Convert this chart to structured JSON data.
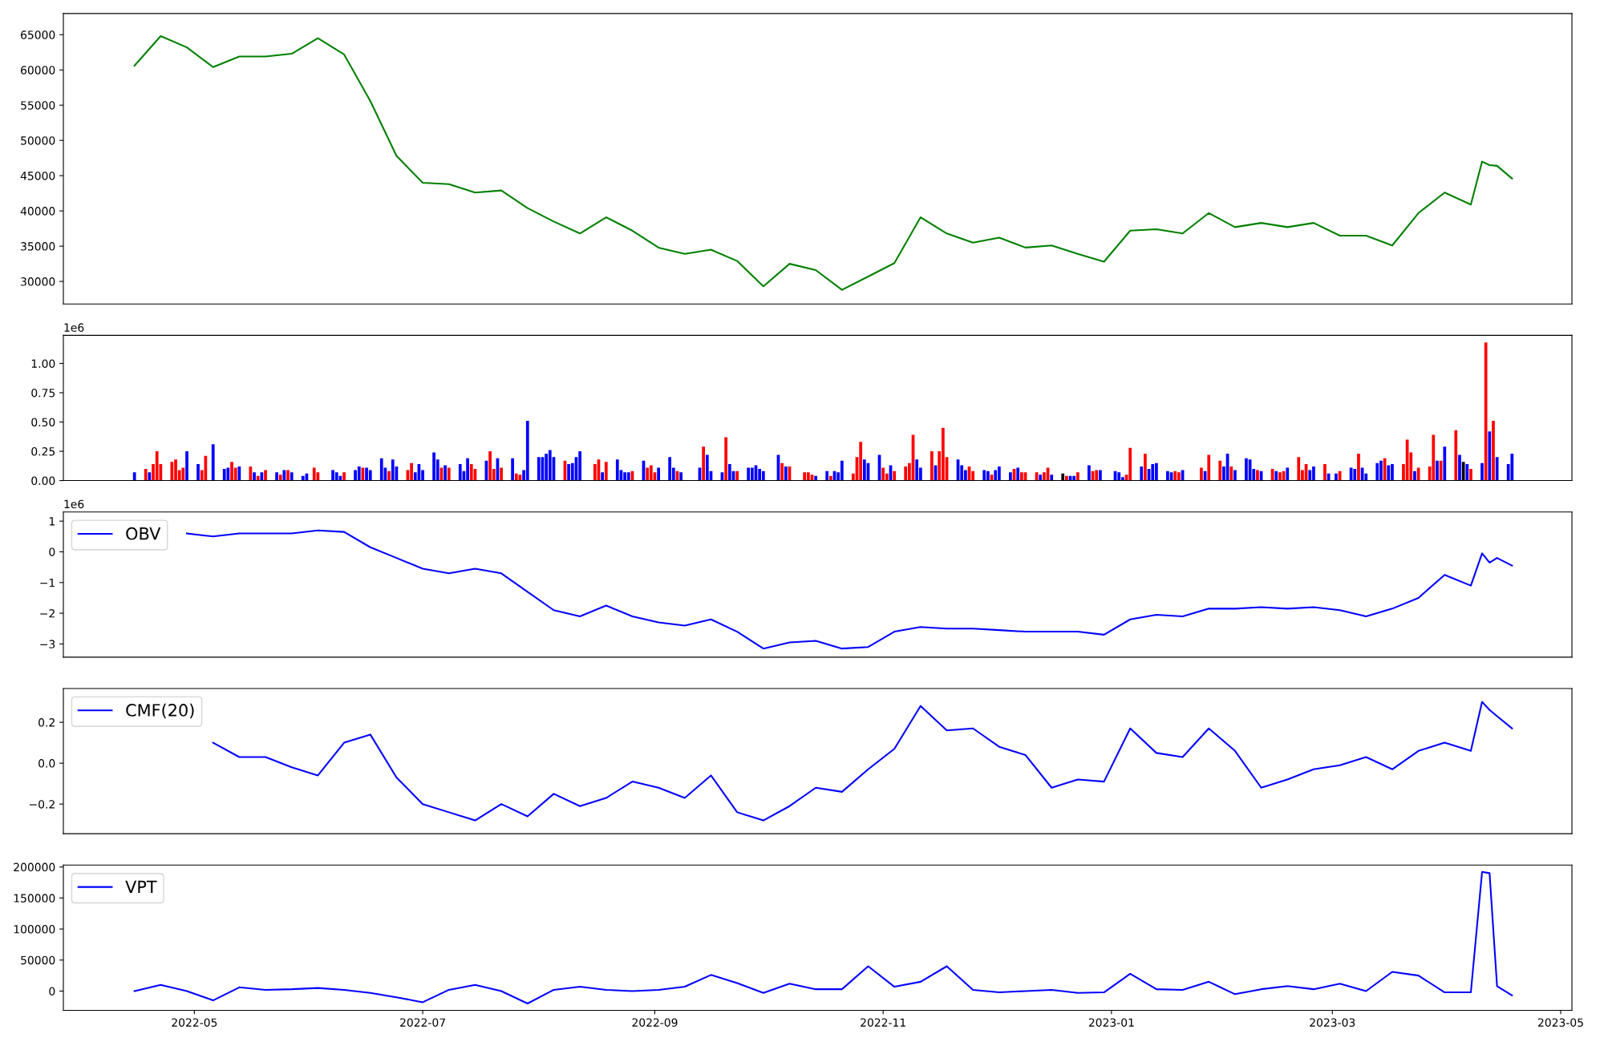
{
  "chart_data": [
    {
      "type": "line",
      "xlim": [
        "2022-03-27",
        "2023-05-04"
      ],
      "ylim": [
        26800,
        68000
      ],
      "yticks": [
        30000,
        35000,
        40000,
        45000,
        50000,
        55000,
        60000,
        65000
      ],
      "tick_labels": "y",
      "series": [
        {
          "color": "#008000",
          "x": [
            "2022-04-15",
            "2022-04-22",
            "2022-04-29",
            "2022-05-06",
            "2022-05-13",
            "2022-05-20",
            "2022-05-27",
            "2022-06-03",
            "2022-06-10",
            "2022-06-17",
            "2022-06-24",
            "2022-07-01",
            "2022-07-08",
            "2022-07-15",
            "2022-07-22",
            "2022-07-29",
            "2022-08-05",
            "2022-08-12",
            "2022-08-19",
            "2022-08-26",
            "2022-09-02",
            "2022-09-09",
            "2022-09-16",
            "2022-09-23",
            "2022-09-30",
            "2022-10-07",
            "2022-10-14",
            "2022-10-21",
            "2022-10-28",
            "2022-11-04",
            "2022-11-11",
            "2022-11-18",
            "2022-11-25",
            "2022-12-02",
            "2022-12-09",
            "2022-12-16",
            "2022-12-23",
            "2022-12-30",
            "2023-01-06",
            "2023-01-13",
            "2023-01-20",
            "2023-01-27",
            "2023-02-03",
            "2023-02-10",
            "2023-02-17",
            "2023-02-24",
            "2023-03-03",
            "2023-03-10",
            "2023-03-17",
            "2023-03-24",
            "2023-03-31",
            "2023-04-07",
            "2023-04-10",
            "2023-04-12",
            "2023-04-14",
            "2023-04-18"
          ],
          "values": [
            60600,
            64800,
            63200,
            60400,
            61900,
            61900,
            62300,
            64500,
            62200,
            55600,
            47800,
            44000,
            43800,
            42600,
            42900,
            40400,
            38500,
            36800,
            39100,
            37200,
            34800,
            33900,
            34500,
            32900,
            29300,
            32500,
            31600,
            28800,
            30700,
            32600,
            39100,
            36800,
            35500,
            36200,
            34800,
            35100,
            33900,
            32800,
            37200,
            37400,
            36800,
            39700,
            37700,
            38300,
            37700,
            38300,
            36500,
            36500,
            35100,
            39700,
            42600,
            40900,
            47000,
            46500,
            46400,
            44600
          ]
        }
      ]
    },
    {
      "type": "bar",
      "ylim": [
        0,
        1.24
      ],
      "tick_labels": "y",
      "annotations": [
        "1e6"
      ],
      "yticks": [
        {
          "value": 0,
          "label": "0.00"
        },
        0.25,
        {
          "value": 0.5,
          "label": "0.50"
        },
        0.75,
        {
          "value": 1,
          "label": "1.00"
        }
      ],
      "xlim": [
        "2022-03-27",
        "2023-05-04"
      ],
      "x": [
        "2022-04-15",
        "2022-04-18",
        "2022-04-19",
        "2022-04-20",
        "2022-04-21",
        "2022-04-22",
        "2022-04-25",
        "2022-04-26",
        "2022-04-27",
        "2022-04-28",
        "2022-04-29",
        "2022-05-02",
        "2022-05-03",
        "2022-05-04",
        "2022-05-06",
        "2022-05-09",
        "2022-05-10",
        "2022-05-11",
        "2022-05-12",
        "2022-05-13",
        "2022-05-16",
        "2022-05-17",
        "2022-05-18",
        "2022-05-19",
        "2022-05-20",
        "2022-05-23",
        "2022-05-24",
        "2022-05-25",
        "2022-05-26",
        "2022-05-27",
        "2022-05-30",
        "2022-05-31",
        "2022-06-02",
        "2022-06-03",
        "2022-06-07",
        "2022-06-08",
        "2022-06-09",
        "2022-06-10",
        "2022-06-13",
        "2022-06-14",
        "2022-06-15",
        "2022-06-16",
        "2022-06-17",
        "2022-06-20",
        "2022-06-21",
        "2022-06-22",
        "2022-06-23",
        "2022-06-24",
        "2022-06-27",
        "2022-06-28",
        "2022-06-29",
        "2022-06-30",
        "2022-07-01",
        "2022-07-04",
        "2022-07-05",
        "2022-07-06",
        "2022-07-07",
        "2022-07-08",
        "2022-07-11",
        "2022-07-12",
        "2022-07-13",
        "2022-07-14",
        "2022-07-15",
        "2022-07-18",
        "2022-07-19",
        "2022-07-20",
        "2022-07-21",
        "2022-07-22",
        "2022-07-25",
        "2022-07-26",
        "2022-07-27",
        "2022-07-28",
        "2022-07-29",
        "2022-08-01",
        "2022-08-02",
        "2022-08-03",
        "2022-08-04",
        "2022-08-05",
        "2022-08-08",
        "2022-08-09",
        "2022-08-10",
        "2022-08-11",
        "2022-08-12",
        "2022-08-16",
        "2022-08-17",
        "2022-08-18",
        "2022-08-19",
        "2022-08-22",
        "2022-08-23",
        "2022-08-24",
        "2022-08-25",
        "2022-08-26",
        "2022-08-29",
        "2022-08-30",
        "2022-08-31",
        "2022-09-01",
        "2022-09-02",
        "2022-09-05",
        "2022-09-06",
        "2022-09-07",
        "2022-09-08",
        "2022-09-13",
        "2022-09-14",
        "2022-09-15",
        "2022-09-16",
        "2022-09-19",
        "2022-09-20",
        "2022-09-21",
        "2022-09-22",
        "2022-09-23",
        "2022-09-26",
        "2022-09-27",
        "2022-09-28",
        "2022-09-29",
        "2022-09-30",
        "2022-10-04",
        "2022-10-05",
        "2022-10-06",
        "2022-10-07",
        "2022-10-11",
        "2022-10-12",
        "2022-10-13",
        "2022-10-14",
        "2022-10-17",
        "2022-10-18",
        "2022-10-19",
        "2022-10-20",
        "2022-10-21",
        "2022-10-24",
        "2022-10-25",
        "2022-10-26",
        "2022-10-27",
        "2022-10-28",
        "2022-10-31",
        "2022-11-01",
        "2022-11-02",
        "2022-11-03",
        "2022-11-04",
        "2022-11-07",
        "2022-11-08",
        "2022-11-09",
        "2022-11-10",
        "2022-11-11",
        "2022-11-14",
        "2022-11-15",
        "2022-11-16",
        "2022-11-17",
        "2022-11-18",
        "2022-11-21",
        "2022-11-22",
        "2022-11-23",
        "2022-11-24",
        "2022-11-25",
        "2022-11-28",
        "2022-11-29",
        "2022-11-30",
        "2022-12-01",
        "2022-12-02",
        "2022-12-05",
        "2022-12-06",
        "2022-12-07",
        "2022-12-08",
        "2022-12-09",
        "2022-12-12",
        "2022-12-13",
        "2022-12-14",
        "2022-12-15",
        "2022-12-16",
        "2022-12-19",
        "2022-12-20",
        "2022-12-21",
        "2022-12-22",
        "2022-12-23",
        "2022-12-26",
        "2022-12-27",
        "2022-12-28",
        "2022-12-29",
        "2023-01-02",
        "2023-01-03",
        "2023-01-04",
        "2023-01-05",
        "2023-01-06",
        "2023-01-09",
        "2023-01-10",
        "2023-01-11",
        "2023-01-12",
        "2023-01-13",
        "2023-01-16",
        "2023-01-17",
        "2023-01-18",
        "2023-01-19",
        "2023-01-20",
        "2023-01-25",
        "2023-01-26",
        "2023-01-27",
        "2023-01-30",
        "2023-01-31",
        "2023-02-01",
        "2023-02-02",
        "2023-02-03",
        "2023-02-06",
        "2023-02-07",
        "2023-02-08",
        "2023-02-09",
        "2023-02-10",
        "2023-02-13",
        "2023-02-14",
        "2023-02-15",
        "2023-02-16",
        "2023-02-17",
        "2023-02-20",
        "2023-02-21",
        "2023-02-22",
        "2023-02-23",
        "2023-02-24",
        "2023-02-27",
        "2023-02-28",
        "2023-03-02",
        "2023-03-03",
        "2023-03-06",
        "2023-03-07",
        "2023-03-08",
        "2023-03-09",
        "2023-03-10",
        "2023-03-13",
        "2023-03-14",
        "2023-03-15",
        "2023-03-16",
        "2023-03-17",
        "2023-03-20",
        "2023-03-21",
        "2023-03-22",
        "2023-03-23",
        "2023-03-24",
        "2023-03-27",
        "2023-03-28",
        "2023-03-29",
        "2023-03-30",
        "2023-03-31",
        "2023-04-03",
        "2023-04-04",
        "2023-04-05",
        "2023-04-06",
        "2023-04-07",
        "2023-04-10",
        "2023-04-11",
        "2023-04-12",
        "2023-04-13",
        "2023-04-14",
        "2023-04-17",
        "2023-04-18"
      ],
      "values": [
        0.07,
        0.1,
        0.07,
        0.14,
        0.25,
        0.14,
        0.16,
        0.18,
        0.09,
        0.11,
        0.25,
        0.14,
        0.09,
        0.21,
        0.31,
        0.1,
        0.11,
        0.16,
        0.11,
        0.12,
        0.12,
        0.07,
        0.04,
        0.07,
        0.09,
        0.07,
        0.05,
        0.09,
        0.09,
        0.07,
        0.04,
        0.06,
        0.11,
        0.07,
        0.09,
        0.07,
        0.04,
        0.07,
        0.09,
        0.12,
        0.11,
        0.11,
        0.09,
        0.19,
        0.11,
        0.08,
        0.18,
        0.12,
        0.09,
        0.15,
        0.07,
        0.14,
        0.09,
        0.24,
        0.18,
        0.11,
        0.13,
        0.11,
        0.14,
        0.08,
        0.19,
        0.14,
        0.1,
        0.17,
        0.25,
        0.1,
        0.19,
        0.11,
        0.19,
        0.06,
        0.05,
        0.09,
        0.51,
        0.2,
        0.2,
        0.23,
        0.26,
        0.2,
        0.17,
        0.14,
        0.15,
        0.2,
        0.25,
        0.14,
        0.18,
        0.07,
        0.16,
        0.18,
        0.09,
        0.07,
        0.07,
        0.08,
        0.17,
        0.11,
        0.13,
        0.07,
        0.11,
        0.2,
        0.11,
        0.08,
        0.07,
        0.11,
        0.29,
        0.22,
        0.08,
        0.07,
        0.37,
        0.14,
        0.08,
        0.08,
        0.11,
        0.11,
        0.13,
        0.1,
        0.08,
        0.22,
        0.15,
        0.12,
        0.12,
        0.07,
        0.07,
        0.05,
        0.04,
        0.08,
        0.04,
        0.08,
        0.07,
        0.17,
        0.06,
        0.2,
        0.33,
        0.18,
        0.15,
        0.22,
        0.11,
        0.06,
        0.13,
        0.08,
        0.12,
        0.15,
        0.39,
        0.18,
        0.11,
        0.25,
        0.13,
        0.25,
        0.45,
        0.2,
        0.18,
        0.13,
        0.09,
        0.12,
        0.08,
        0.09,
        0.08,
        0.05,
        0.09,
        0.12,
        0.07,
        0.1,
        0.11,
        0.07,
        0.07,
        0.07,
        0.05,
        0.07,
        0.11,
        0.05,
        0.06,
        0.04,
        0.04,
        0.04,
        0.07,
        0.13,
        0.08,
        0.09,
        0.09,
        0.08,
        0.07,
        0.03,
        0.05,
        0.28,
        0.12,
        0.23,
        0.1,
        0.14,
        0.15,
        0.08,
        0.07,
        0.08,
        0.07,
        0.09,
        0.11,
        0.08,
        0.22,
        0.17,
        0.12,
        0.23,
        0.12,
        0.09,
        0.19,
        0.18,
        0.1,
        0.09,
        0.08,
        0.1,
        0.08,
        0.07,
        0.08,
        0.11,
        0.2,
        0.09,
        0.14,
        0.09,
        0.12,
        0.14,
        0.06,
        0.06,
        0.08,
        0.11,
        0.1,
        0.23,
        0.11,
        0.06,
        0.15,
        0.17,
        0.19,
        0.13,
        0.14,
        0.14,
        0.35,
        0.24,
        0.08,
        0.11,
        0.12,
        0.39,
        0.17,
        0.17,
        0.29,
        0.43,
        0.22,
        0.16,
        0.14,
        0.1,
        0.15,
        1.18,
        0.42,
        0.51,
        0.2,
        0.14,
        0.23
      ],
      "colors": [
        "#0000ff",
        "#ff0000",
        "#0000ff",
        "#ff0000",
        "#ff0000",
        "#ff0000",
        "#ff0000",
        "#ff0000",
        "#ff0000",
        "#ff0000",
        "#0000ff",
        "#0000ff",
        "#ff0000",
        "#ff0000",
        "#0000ff",
        "#0000ff",
        "#0000ff",
        "#ff0000",
        "#ff0000",
        "#0000ff",
        "#ff0000",
        "#0000ff",
        "#ff0000",
        "#0000ff",
        "#ff0000",
        "#0000ff",
        "#ff0000",
        "#0000ff",
        "#ff0000",
        "#0000ff",
        "#0000ff",
        "#0000ff",
        "#ff0000",
        "#ff0000",
        "#0000ff",
        "#0000ff",
        "#0000ff",
        "#ff0000",
        "#0000ff",
        "#0000ff",
        "#ff0000",
        "#0000ff",
        "#0000ff",
        "#0000ff",
        "#0000ff",
        "#ff0000",
        "#0000ff",
        "#0000ff",
        "#ff0000",
        "#ff0000",
        "#0000ff",
        "#0000ff",
        "#0000ff",
        "#0000ff",
        "#0000ff",
        "#ff0000",
        "#0000ff",
        "#ff0000",
        "#0000ff",
        "#0000ff",
        "#0000ff",
        "#ff0000",
        "#ff0000",
        "#0000ff",
        "#ff0000",
        "#ff0000",
        "#0000ff",
        "#ff0000",
        "#0000ff",
        "#ff0000",
        "#ff0000",
        "#0000ff",
        "#0000ff",
        "#0000ff",
        "#0000ff",
        "#0000ff",
        "#0000ff",
        "#0000ff",
        "#ff0000",
        "#0000ff",
        "#0000ff",
        "#0000ff",
        "#0000ff",
        "#ff0000",
        "#ff0000",
        "#0000ff",
        "#ff0000",
        "#0000ff",
        "#0000ff",
        "#0000ff",
        "#0000ff",
        "#ff0000",
        "#0000ff",
        "#ff0000",
        "#ff0000",
        "#ff0000",
        "#0000ff",
        "#0000ff",
        "#0000ff",
        "#ff0000",
        "#0000ff",
        "#0000ff",
        "#ff0000",
        "#0000ff",
        "#0000ff",
        "#0000ff",
        "#ff0000",
        "#0000ff",
        "#0000ff",
        "#ff0000",
        "#0000ff",
        "#0000ff",
        "#0000ff",
        "#0000ff",
        "#0000ff",
        "#0000ff",
        "#ff0000",
        "#0000ff",
        "#ff0000",
        "#ff0000",
        "#ff0000",
        "#ff0000",
        "#0000ff",
        "#0000ff",
        "#ff0000",
        "#0000ff",
        "#0000ff",
        "#0000ff",
        "#ff0000",
        "#ff0000",
        "#ff0000",
        "#0000ff",
        "#0000ff",
        "#0000ff",
        "#ff0000",
        "#ff0000",
        "#0000ff",
        "#ff0000",
        "#ff0000",
        "#ff0000",
        "#ff0000",
        "#0000ff",
        "#0000ff",
        "#ff0000",
        "#0000ff",
        "#ff0000",
        "#ff0000",
        "#ff0000",
        "#0000ff",
        "#0000ff",
        "#0000ff",
        "#ff0000",
        "#ff0000",
        "#0000ff",
        "#0000ff",
        "#ff0000",
        "#0000ff",
        "#0000ff",
        "#0000ff",
        "#ff0000",
        "#0000ff",
        "#ff0000",
        "#ff0000",
        "#ff0000",
        "#0000ff",
        "#ff0000",
        "#ff0000",
        "#0000ff",
        "#000000",
        "#ff0000",
        "#0000ff",
        "#0000ff",
        "#ff0000",
        "#0000ff",
        "#ff0000",
        "#ff0000",
        "#0000ff",
        "#0000ff",
        "#0000ff",
        "#0000ff",
        "#ff0000",
        "#ff0000",
        "#0000ff",
        "#ff0000",
        "#0000ff",
        "#0000ff",
        "#0000ff",
        "#0000ff",
        "#0000ff",
        "#ff0000",
        "#ff0000",
        "#0000ff",
        "#ff0000",
        "#0000ff",
        "#ff0000",
        "#ff0000",
        "#0000ff",
        "#0000ff",
        "#ff0000",
        "#0000ff",
        "#0000ff",
        "#0000ff",
        "#0000ff",
        "#ff0000",
        "#0000ff",
        "#ff0000",
        "#0000ff",
        "#ff0000",
        "#ff0000",
        "#0000ff",
        "#ff0000",
        "#ff0000",
        "#ff0000",
        "#0000ff",
        "#0000ff",
        "#ff0000",
        "#0000ff",
        "#0000ff",
        "#ff0000",
        "#0000ff",
        "#0000ff",
        "#ff0000",
        "#0000ff",
        "#0000ff",
        "#0000ff",
        "#0000ff",
        "#ff0000",
        "#0000ff",
        "#0000ff",
        "#ff0000",
        "#ff0000",
        "#ff0000",
        "#0000ff",
        "#ff0000",
        "#ff0000",
        "#ff0000",
        "#0000ff",
        "#ff0000",
        "#0000ff",
        "#ff0000",
        "#0000ff",
        "#000000",
        "#0000ff",
        "#ff0000",
        "#0000ff",
        "#ff0000",
        "#0000ff",
        "#ff0000",
        "#0000ff",
        "#0000ff",
        "#0000ff"
      ]
    },
    {
      "type": "line",
      "xlim": [
        "2022-03-27",
        "2023-05-04"
      ],
      "ylim": [
        -3.43,
        1.3
      ],
      "tick_labels": "y",
      "annotations": [
        "1e6"
      ],
      "legend": "top left",
      "yticks": [
        {
          "value": -3,
          "label": "−3"
        },
        {
          "value": -2,
          "label": "−2"
        },
        {
          "value": -1,
          "label": "−1"
        },
        0,
        1
      ],
      "series": [
        {
          "name": "OBV",
          "color": "#0000ff",
          "x": [
            "2022-04-29",
            "2022-05-06",
            "2022-05-13",
            "2022-05-20",
            "2022-05-27",
            "2022-06-03",
            "2022-06-10",
            "2022-06-17",
            "2022-06-24",
            "2022-07-01",
            "2022-07-08",
            "2022-07-15",
            "2022-07-22",
            "2022-07-29",
            "2022-08-05",
            "2022-08-12",
            "2022-08-19",
            "2022-08-26",
            "2022-09-02",
            "2022-09-09",
            "2022-09-16",
            "2022-09-23",
            "2022-09-30",
            "2022-10-07",
            "2022-10-14",
            "2022-10-21",
            "2022-10-28",
            "2022-11-04",
            "2022-11-11",
            "2022-11-18",
            "2022-11-25",
            "2022-12-02",
            "2022-12-09",
            "2022-12-16",
            "2022-12-23",
            "2022-12-30",
            "2023-01-06",
            "2023-01-13",
            "2023-01-20",
            "2023-01-27",
            "2023-02-03",
            "2023-02-10",
            "2023-02-17",
            "2023-02-24",
            "2023-03-03",
            "2023-03-10",
            "2023-03-17",
            "2023-03-24",
            "2023-03-31",
            "2023-04-07",
            "2023-04-10",
            "2023-04-12",
            "2023-04-14",
            "2023-04-18"
          ],
          "values": [
            0.6,
            0.5,
            0.6,
            0.6,
            0.6,
            0.7,
            0.65,
            0.15,
            -0.2,
            -0.55,
            -0.7,
            -0.55,
            -0.7,
            -1.3,
            -1.9,
            -2.1,
            -1.75,
            -2.1,
            -2.3,
            -2.4,
            -2.2,
            -2.6,
            -3.15,
            -2.95,
            -2.9,
            -3.15,
            -3.1,
            -2.6,
            -2.45,
            -2.5,
            -2.5,
            -2.55,
            -2.6,
            -2.6,
            -2.6,
            -2.7,
            -2.2,
            -2.05,
            -2.1,
            -1.85,
            -1.85,
            -1.8,
            -1.85,
            -1.8,
            -1.9,
            -2.1,
            -1.85,
            -1.5,
            -0.75,
            -1.1,
            -0.05,
            -0.35,
            -0.2,
            -0.45
          ]
        }
      ]
    },
    {
      "type": "line",
      "xlim": [
        "2022-03-27",
        "2023-05-04"
      ],
      "ylim": [
        -0.345,
        0.365
      ],
      "tick_labels": "y",
      "legend": "top left",
      "yticks": [
        {
          "value": -0.2,
          "label": "−0.2"
        },
        {
          "value": 0,
          "label": "0.0"
        },
        0.2
      ],
      "series": [
        {
          "name": "CMF(20)",
          "color": "#0000ff",
          "x": [
            "2022-05-06",
            "2022-05-13",
            "2022-05-20",
            "2022-05-27",
            "2022-06-03",
            "2022-06-10",
            "2022-06-17",
            "2022-06-24",
            "2022-07-01",
            "2022-07-08",
            "2022-07-15",
            "2022-07-22",
            "2022-07-29",
            "2022-08-05",
            "2022-08-12",
            "2022-08-19",
            "2022-08-26",
            "2022-09-02",
            "2022-09-09",
            "2022-09-16",
            "2022-09-23",
            "2022-09-30",
            "2022-10-07",
            "2022-10-14",
            "2022-10-21",
            "2022-10-28",
            "2022-11-04",
            "2022-11-11",
            "2022-11-18",
            "2022-11-25",
            "2022-12-02",
            "2022-12-09",
            "2022-12-16",
            "2022-12-23",
            "2022-12-30",
            "2023-01-06",
            "2023-01-13",
            "2023-01-20",
            "2023-01-27",
            "2023-02-03",
            "2023-02-10",
            "2023-02-17",
            "2023-02-24",
            "2023-03-03",
            "2023-03-10",
            "2023-03-17",
            "2023-03-24",
            "2023-03-31",
            "2023-04-07",
            "2023-04-10",
            "2023-04-12",
            "2023-04-14",
            "2023-04-18"
          ],
          "values": [
            0.1,
            0.03,
            0.03,
            -0.02,
            -0.06,
            0.1,
            0.14,
            -0.07,
            -0.2,
            -0.24,
            -0.28,
            -0.2,
            -0.26,
            -0.15,
            -0.21,
            -0.17,
            -0.09,
            -0.12,
            -0.17,
            -0.06,
            -0.24,
            -0.28,
            -0.21,
            -0.12,
            -0.14,
            -0.03,
            0.07,
            0.28,
            0.16,
            0.17,
            0.08,
            0.04,
            -0.12,
            -0.08,
            -0.09,
            0.17,
            0.05,
            0.03,
            0.17,
            0.06,
            -0.12,
            -0.08,
            -0.03,
            -0.01,
            0.03,
            -0.03,
            0.06,
            0.1,
            0.06,
            0.3,
            0.26,
            0.23,
            0.17
          ]
        }
      ]
    },
    {
      "type": "line",
      "xlim": [
        "2022-03-27",
        "2023-05-04"
      ],
      "ylim": [
        -31000,
        203000
      ],
      "yticks": [
        0,
        50000,
        100000,
        150000,
        200000
      ],
      "legend": "top left",
      "xticks": [
        "2022-05",
        "2022-07",
        "2022-09",
        "2022-11",
        "2023-01",
        "2023-03",
        "2023-05"
      ],
      "series": [
        {
          "name": "VPT",
          "color": "#0000ff",
          "x": [
            "2022-04-15",
            "2022-04-22",
            "2022-04-29",
            "2022-05-06",
            "2022-05-13",
            "2022-05-20",
            "2022-05-27",
            "2022-06-03",
            "2022-06-10",
            "2022-06-17",
            "2022-06-24",
            "2022-07-01",
            "2022-07-08",
            "2022-07-15",
            "2022-07-22",
            "2022-07-29",
            "2022-08-05",
            "2022-08-12",
            "2022-08-19",
            "2022-08-26",
            "2022-09-02",
            "2022-09-09",
            "2022-09-16",
            "2022-09-23",
            "2022-09-30",
            "2022-10-07",
            "2022-10-14",
            "2022-10-21",
            "2022-10-28",
            "2022-11-04",
            "2022-11-11",
            "2022-11-18",
            "2022-11-25",
            "2022-12-02",
            "2022-12-09",
            "2022-12-16",
            "2022-12-23",
            "2022-12-30",
            "2023-01-06",
            "2023-01-13",
            "2023-01-20",
            "2023-01-27",
            "2023-02-03",
            "2023-02-10",
            "2023-02-17",
            "2023-02-24",
            "2023-03-03",
            "2023-03-10",
            "2023-03-17",
            "2023-03-24",
            "2023-03-31",
            "2023-04-07",
            "2023-04-10",
            "2023-04-12",
            "2023-04-14",
            "2023-04-18"
          ],
          "values": [
            0,
            10000,
            0,
            -15000,
            6000,
            2000,
            3000,
            5000,
            2000,
            -3000,
            -10000,
            -18000,
            2000,
            10000,
            0,
            -20000,
            2000,
            7000,
            2000,
            0,
            2000,
            7000,
            26000,
            13000,
            -3000,
            12000,
            3000,
            3000,
            40000,
            7000,
            15000,
            40000,
            2000,
            -2000,
            0,
            2000,
            -3000,
            -2000,
            28000,
            3000,
            2000,
            15000,
            -5000,
            3000,
            8000,
            3000,
            12000,
            0,
            31000,
            25000,
            -2000,
            -2000,
            192000,
            190000,
            8000,
            -7000
          ]
        }
      ]
    }
  ]
}
